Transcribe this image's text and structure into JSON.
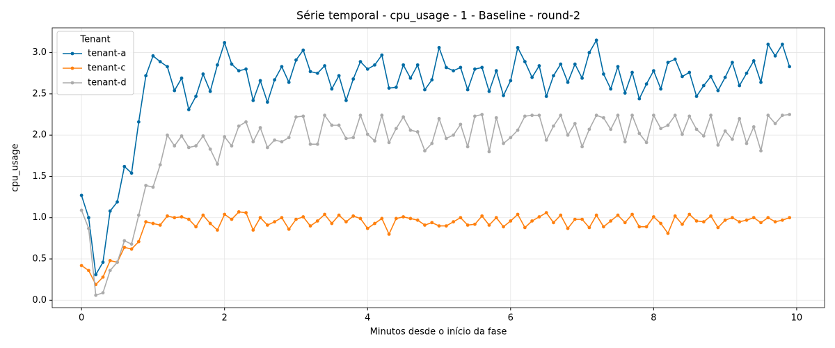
{
  "chart_data": {
    "type": "line",
    "title": "Série temporal - cpu_usage - 1 - Baseline - round-2",
    "xlabel": "Minutos desde o início da fase",
    "ylabel": "cpu_usage",
    "legend_title": "Tenant",
    "legend_position": "upper left",
    "grid": true,
    "xlim": [
      -0.41,
      10.39
    ],
    "ylim": [
      -0.09,
      3.3
    ],
    "xticks": [
      0,
      2,
      4,
      6,
      8,
      10
    ],
    "yticks": [
      {
        "value": 0,
        "label": "0.0"
      },
      0.5,
      {
        "value": 1,
        "label": "1.0"
      },
      1.5,
      {
        "value": 2,
        "label": "2.0"
      },
      2.5,
      {
        "value": 3,
        "label": "3.0"
      }
    ],
    "x": [
      0,
      0.1,
      0.2,
      0.3,
      0.4,
      0.5,
      0.6,
      0.7,
      0.8,
      0.9,
      1,
      1.1,
      1.2,
      1.3,
      1.4,
      1.5,
      1.6,
      1.7,
      1.8,
      1.9,
      2,
      2.1,
      2.2,
      2.3,
      2.4,
      2.5,
      2.6,
      2.7,
      2.8,
      2.9,
      3,
      3.1,
      3.2,
      3.3,
      3.4,
      3.5,
      3.6,
      3.7,
      3.8,
      3.9,
      4,
      4.1,
      4.2,
      4.3,
      4.4,
      4.5,
      4.6,
      4.7,
      4.8,
      4.9,
      5,
      5.1,
      5.2,
      5.3,
      5.4,
      5.5,
      5.6,
      5.7,
      5.8,
      5.9,
      6,
      6.1,
      6.2,
      6.3,
      6.4,
      6.5,
      6.6,
      6.7,
      6.8,
      6.9,
      7,
      7.1,
      7.2,
      7.3,
      7.4,
      7.5,
      7.6,
      7.7,
      7.8,
      7.9,
      8,
      8.1,
      8.2,
      8.3,
      8.4,
      8.5,
      8.6,
      8.7,
      8.8,
      8.9,
      9,
      9.1,
      9.2,
      9.3,
      9.4,
      9.5,
      9.6,
      9.7,
      9.8,
      9.9
    ],
    "series": [
      {
        "name": "tenant-a",
        "color": "#006ba4",
        "values": [
          1.27,
          1.0,
          0.31,
          0.46,
          1.08,
          1.19,
          1.62,
          1.54,
          2.16,
          2.72,
          2.96,
          2.89,
          2.83,
          2.54,
          2.69,
          2.31,
          2.47,
          2.74,
          2.53,
          2.85,
          3.12,
          2.86,
          2.78,
          2.8,
          2.42,
          2.66,
          2.4,
          2.67,
          2.83,
          2.64,
          2.91,
          3.03,
          2.77,
          2.75,
          2.84,
          2.56,
          2.72,
          2.42,
          2.68,
          2.89,
          2.8,
          2.85,
          2.97,
          2.57,
          2.58,
          2.85,
          2.69,
          2.85,
          2.55,
          2.67,
          3.06,
          2.82,
          2.78,
          2.82,
          2.55,
          2.8,
          2.82,
          2.53,
          2.78,
          2.48,
          2.66,
          3.06,
          2.89,
          2.7,
          2.84,
          2.47,
          2.72,
          2.86,
          2.64,
          2.86,
          2.69,
          3.0,
          3.15,
          2.74,
          2.56,
          2.83,
          2.51,
          2.76,
          2.44,
          2.62,
          2.78,
          2.56,
          2.88,
          2.92,
          2.71,
          2.76,
          2.47,
          2.6,
          2.71,
          2.54,
          2.7,
          2.88,
          2.6,
          2.75,
          2.9,
          2.64,
          3.1,
          2.96,
          3.1,
          2.83
        ]
      },
      {
        "name": "tenant-c",
        "color": "#ff800e",
        "values": [
          0.42,
          0.36,
          0.19,
          0.28,
          0.48,
          0.46,
          0.64,
          0.62,
          0.71,
          0.95,
          0.93,
          0.91,
          1.02,
          1.0,
          1.01,
          0.98,
          0.89,
          1.03,
          0.93,
          0.85,
          1.04,
          0.98,
          1.07,
          1.06,
          0.85,
          1.0,
          0.91,
          0.95,
          1.0,
          0.86,
          0.98,
          1.01,
          0.9,
          0.96,
          1.04,
          0.93,
          1.03,
          0.95,
          1.02,
          0.99,
          0.87,
          0.93,
          0.99,
          0.8,
          0.99,
          1.01,
          0.99,
          0.97,
          0.91,
          0.94,
          0.9,
          0.9,
          0.95,
          1.0,
          0.91,
          0.92,
          1.02,
          0.91,
          1.0,
          0.89,
          0.96,
          1.04,
          0.88,
          0.96,
          1.01,
          1.06,
          0.94,
          1.03,
          0.87,
          0.98,
          0.98,
          0.88,
          1.03,
          0.89,
          0.96,
          1.03,
          0.94,
          1.04,
          0.89,
          0.89,
          1.01,
          0.93,
          0.81,
          1.02,
          0.92,
          1.04,
          0.96,
          0.95,
          1.02,
          0.88,
          0.97,
          1.0,
          0.95,
          0.97,
          1.0,
          0.94,
          1.0,
          0.95,
          0.97,
          1.0
        ]
      },
      {
        "name": "tenant-d",
        "color": "#ababab",
        "values": [
          1.09,
          0.87,
          0.06,
          0.09,
          0.36,
          0.46,
          0.72,
          0.68,
          1.03,
          1.39,
          1.37,
          1.64,
          2.0,
          1.87,
          1.99,
          1.85,
          1.87,
          1.99,
          1.83,
          1.65,
          1.98,
          1.87,
          2.11,
          2.16,
          1.92,
          2.09,
          1.85,
          1.94,
          1.92,
          1.97,
          2.22,
          2.23,
          1.89,
          1.89,
          2.24,
          2.12,
          2.12,
          1.96,
          1.97,
          2.24,
          2.01,
          1.93,
          2.24,
          1.91,
          2.08,
          2.22,
          2.06,
          2.04,
          1.81,
          1.9,
          2.2,
          1.96,
          2.0,
          2.13,
          1.86,
          2.23,
          2.25,
          1.8,
          2.21,
          1.9,
          1.97,
          2.06,
          2.23,
          2.24,
          2.24,
          1.94,
          2.11,
          2.24,
          2.0,
          2.14,
          1.86,
          2.07,
          2.24,
          2.21,
          2.07,
          2.24,
          1.92,
          2.24,
          2.02,
          1.91,
          2.24,
          2.08,
          2.12,
          2.24,
          2.01,
          2.23,
          2.07,
          1.99,
          2.24,
          1.88,
          2.05,
          1.95,
          2.2,
          1.9,
          2.1,
          1.81,
          2.24,
          2.14,
          2.24,
          2.25
        ]
      }
    ]
  }
}
